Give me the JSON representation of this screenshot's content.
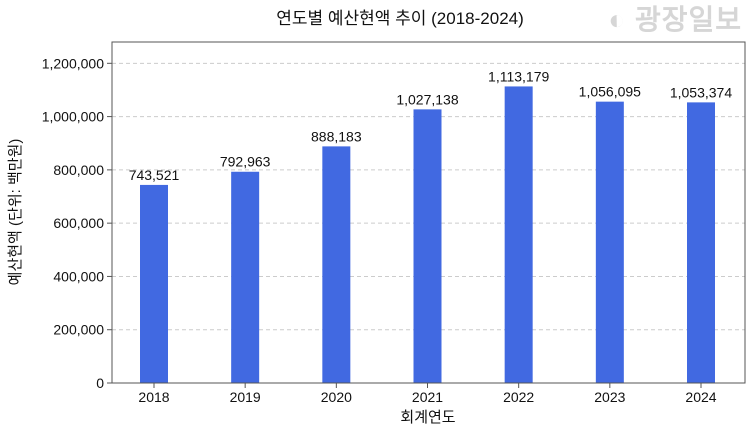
{
  "chart_data": {
    "type": "bar",
    "title": "연도별 예산현액 추이 (2018-2024)",
    "xlabel": "회계연도",
    "ylabel": "예산현액 (단위: 백만원)",
    "categories": [
      "2018",
      "2019",
      "2020",
      "2021",
      "2022",
      "2023",
      "2024"
    ],
    "values": [
      743521,
      792963,
      888183,
      1027138,
      1113179,
      1056095,
      1053374
    ],
    "data_labels": [
      "743,521",
      "792,963",
      "888,183",
      "1,027,138",
      "1,113,179",
      "1,056,095",
      "1,053,374"
    ],
    "ylim": [
      0,
      1280000
    ],
    "yticks": [
      0,
      200000,
      400000,
      600000,
      800000,
      1000000,
      1200000
    ],
    "ytick_labels": [
      "0",
      "200,000",
      "400,000",
      "600,000",
      "800,000",
      "1,000,000",
      "1,200,000"
    ],
    "grid": "horizontal dashed",
    "bar_color": "#4169E1"
  },
  "watermark": "광장일보"
}
